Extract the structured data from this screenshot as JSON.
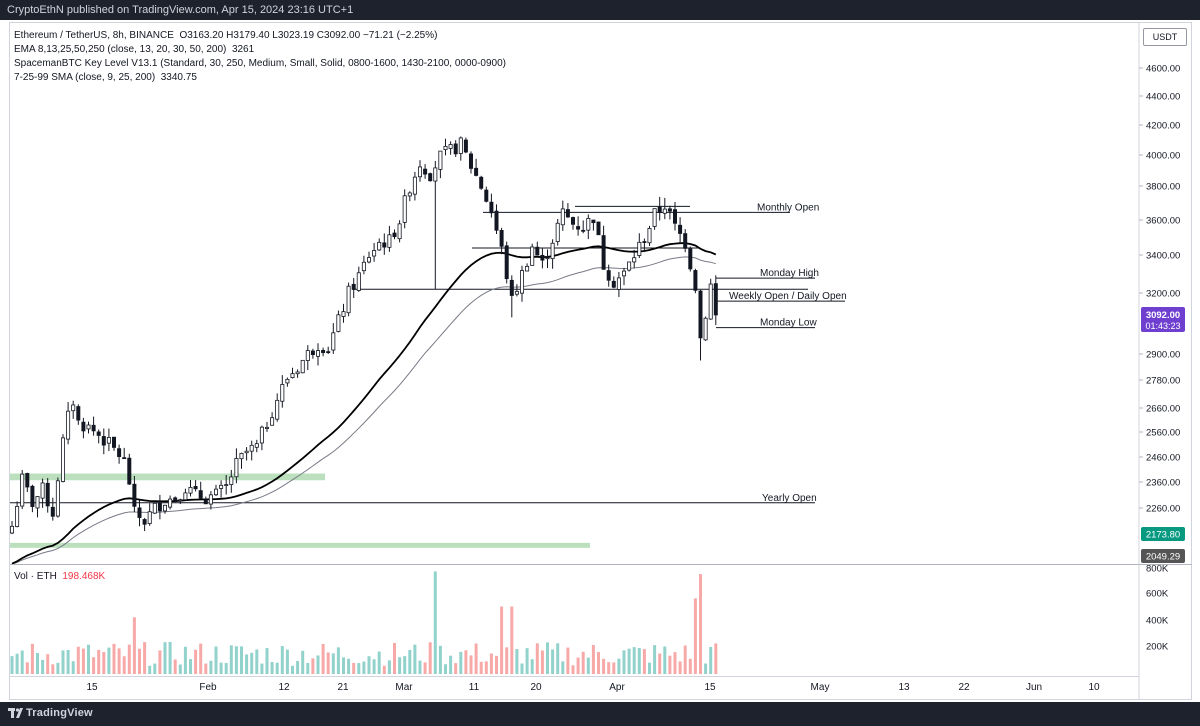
{
  "header": {
    "published": "CryptoEthN published on TradingView.com, Apr 15, 2024 23:16 UTC+1"
  },
  "legend": {
    "symbol_line": "Ethereum / TetherUS, 8h, BINANCE",
    "ohlc": "O3163.20  H3179.40  L3023.19  C3092.00  −71.21 (−2.25%)",
    "ema_label": "EMA 8,13,25,50,250 (close, 13, 20, 30, 50, 200)",
    "ema_value": "3261",
    "key_level_label": "SpacemanBTC Key Level V13.1 (Standard, 30, 250, Medium, Small, Solid, 0800-1600, 1430-2100, 0000-0900)",
    "sma_label": "7-25-99 SMA (close, 9, 25, 200)",
    "sma_value": "3340.75"
  },
  "currency_button": "USDT",
  "volume_legend": {
    "label": "Vol · ETH",
    "value": "198.468K"
  },
  "footer": {
    "brand": "TradingView"
  },
  "colors": {
    "up": "#26a69a",
    "down": "#ef5350",
    "ema": "#000000",
    "sma": "#787b86",
    "zone": "#a5d6a7",
    "last_price_bg": "#6f3fd0",
    "price_tag_green": "#089981",
    "price_tag_dark": "#555555"
  },
  "chart_data": {
    "type": "candlestick",
    "timeframe": "8h",
    "x_ticks": [
      "15",
      "Feb",
      "12",
      "21",
      "Mar",
      "11",
      "20",
      "Apr",
      "15",
      "May",
      "13",
      "22",
      "Jun",
      "10"
    ],
    "y_ticks": [
      "4600.00",
      "4400.00",
      "4200.00",
      "4000.00",
      "3800.00",
      "3600.00",
      "3400.00",
      "3200.00",
      "2900.00",
      "2780.00",
      "2660.00",
      "2560.00",
      "2460.00",
      "2360.00",
      "2260.00"
    ],
    "volume_ticks": [
      "800K",
      "600K",
      "400K",
      "200K"
    ],
    "price_path": [
      [
        0,
        2190
      ],
      [
        2,
        2370
      ],
      [
        4,
        2280
      ],
      [
        6,
        2330
      ],
      [
        8,
        2240
      ],
      [
        9,
        2380
      ],
      [
        10,
        2520
      ],
      [
        11,
        2620
      ],
      [
        12,
        2690
      ],
      [
        13,
        2600
      ],
      [
        15,
        2580
      ],
      [
        17,
        2550
      ],
      [
        19,
        2510
      ],
      [
        21,
        2470
      ],
      [
        22,
        2440
      ],
      [
        23,
        2360
      ],
      [
        24,
        2240
      ],
      [
        26,
        2210
      ],
      [
        28,
        2260
      ],
      [
        30,
        2290
      ],
      [
        32,
        2300
      ],
      [
        34,
        2340
      ],
      [
        36,
        2310
      ],
      [
        38,
        2300
      ],
      [
        40,
        2310
      ],
      [
        42,
        2340
      ],
      [
        44,
        2430
      ],
      [
        46,
        2480
      ],
      [
        48,
        2500
      ],
      [
        50,
        2600
      ],
      [
        52,
        2700
      ],
      [
        54,
        2790
      ],
      [
        56,
        2840
      ],
      [
        58,
        2900
      ],
      [
        60,
        2950
      ],
      [
        62,
        2930
      ],
      [
        64,
        3060
      ],
      [
        66,
        3200
      ],
      [
        68,
        3290
      ],
      [
        70,
        3400
      ],
      [
        72,
        3470
      ],
      [
        74,
        3480
      ],
      [
        76,
        3600
      ],
      [
        78,
        3800
      ],
      [
        80,
        3950
      ],
      [
        82,
        3880
      ],
      [
        84,
        3990
      ],
      [
        86,
        4030
      ],
      [
        88,
        4070
      ],
      [
        90,
        3930
      ],
      [
        92,
        3800
      ],
      [
        94,
        3650
      ],
      [
        96,
        3430
      ],
      [
        98,
        3160
      ],
      [
        100,
        3300
      ],
      [
        102,
        3450
      ],
      [
        104,
        3350
      ],
      [
        106,
        3490
      ],
      [
        108,
        3640
      ],
      [
        110,
        3580
      ],
      [
        112,
        3560
      ],
      [
        114,
        3620
      ],
      [
        116,
        3350
      ],
      [
        118,
        3260
      ],
      [
        120,
        3300
      ],
      [
        122,
        3400
      ],
      [
        124,
        3500
      ],
      [
        126,
        3630
      ],
      [
        128,
        3690
      ],
      [
        130,
        3560
      ],
      [
        132,
        3470
      ],
      [
        134,
        3240
      ],
      [
        135,
        2980
      ],
      [
        136,
        3100
      ],
      [
        137,
        3240
      ],
      [
        138,
        3092
      ]
    ],
    "last_price": "3092.00",
    "countdown": "01:43:23",
    "ema_label_price": "2173.80",
    "low_label_price": "2049.29",
    "levels": [
      {
        "name": "Monthly Open",
        "price": 3645
      },
      {
        "name": "Monday High",
        "price": 3278
      },
      {
        "name": "Weekly Open / Daily Open",
        "price": 3160
      },
      {
        "name": "Monday Low",
        "price": 3030
      },
      {
        "name": "Yearly Open",
        "price": 2280
      }
    ],
    "other_levels": [
      3680,
      3440,
      3220
    ],
    "zones": [
      {
        "from": 2367,
        "to": 2394
      },
      {
        "from": 2112,
        "to": 2126
      }
    ],
    "grid": false,
    "legend_position": "top-left"
  }
}
